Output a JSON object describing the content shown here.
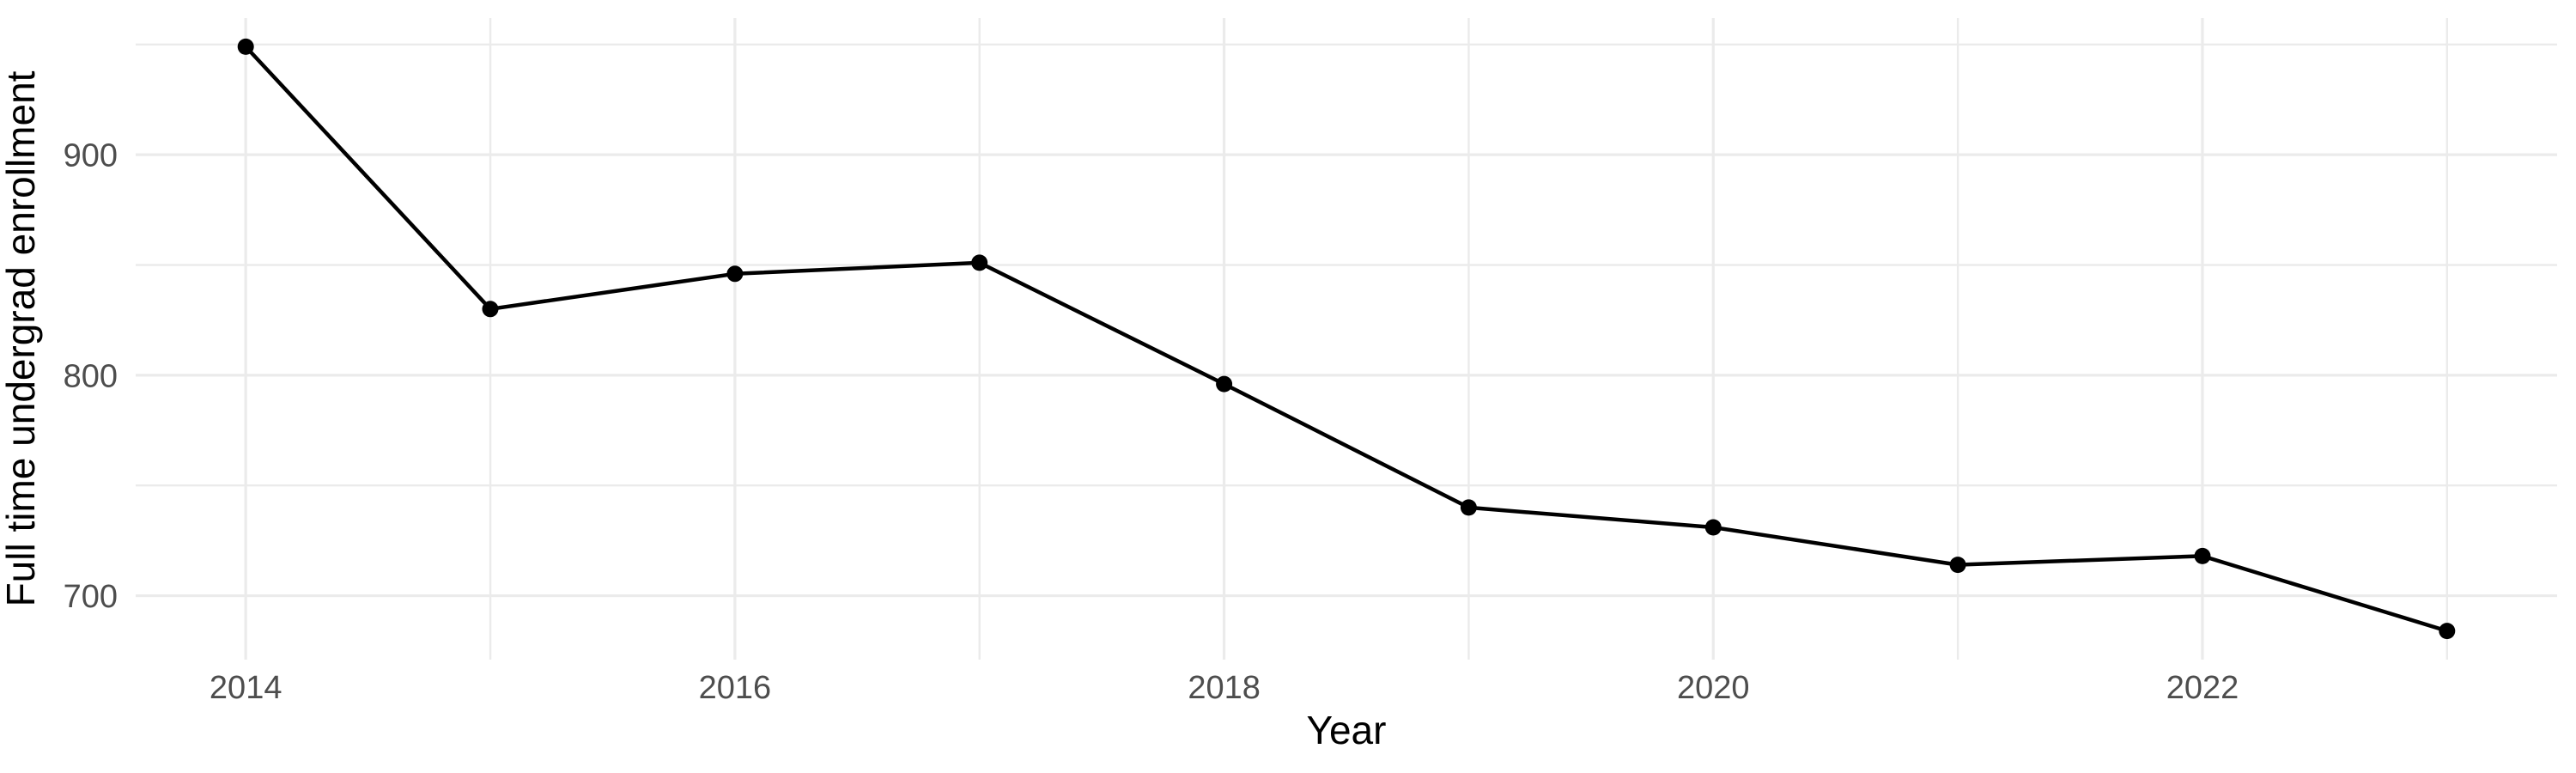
{
  "chart_data": {
    "type": "line",
    "title": "",
    "xlabel": "Year",
    "ylabel": "Full time undergrad enrollment",
    "x": [
      2014,
      2015,
      2016,
      2017,
      2018,
      2019,
      2020,
      2021,
      2022,
      2023
    ],
    "series": [
      {
        "name": "Full time undergrad enrollment",
        "values": [
          949,
          830,
          846,
          851,
          796,
          740,
          731,
          714,
          718,
          684
        ]
      }
    ],
    "x_ticks": [
      2014,
      2016,
      2018,
      2020,
      2022
    ],
    "y_ticks": [
      700,
      800,
      900
    ],
    "x_minor_gridlines": [
      2015,
      2017,
      2019,
      2021,
      2023
    ],
    "y_minor_gridlines": [
      750,
      850,
      950
    ],
    "xlim": [
      2013.55,
      2023.45
    ],
    "ylim": [
      671,
      962
    ],
    "grid": true,
    "legend": false,
    "colors": {
      "line": "#000000",
      "point": "#000000",
      "grid": "#ebebeb",
      "tick_label": "#4d4d4d",
      "axis_title": "#000000",
      "background": "#ffffff"
    }
  }
}
